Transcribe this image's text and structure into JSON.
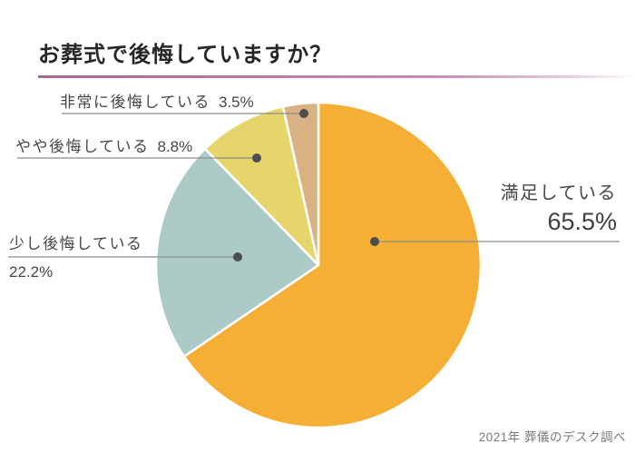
{
  "page": {
    "title": "お葬式で後悔していますか？",
    "source_note": "2021年 葬儀のデスク調べ"
  },
  "chart_data": {
    "type": "pie",
    "title": "お葬式で後悔していますか？",
    "unit": "%",
    "start_angle_deg": 0,
    "direction": "clockwise",
    "legend": "none",
    "categories": [
      "満足している",
      "少し後悔している",
      "やや後悔している",
      "非常に後悔している"
    ],
    "values": [
      65.5,
      22.2,
      8.8,
      3.5
    ],
    "colors": [
      "#F4AF34",
      "#ACCBC7",
      "#E5D56B",
      "#D9B284"
    ],
    "callout_line_color": "#8c8c8c",
    "callout_dot_color": "#4d4d4d",
    "source": "2021年 葬儀のデスク調べ"
  },
  "callouts": {
    "satisfied": {
      "name": "満足している",
      "value": "65.5%"
    },
    "slight_regret": {
      "name": "少し後悔している",
      "value": "22.2%"
    },
    "moderate_regret": {
      "name": "やや後悔している",
      "value": "8.8%"
    },
    "strong_regret": {
      "name": "非常に後悔している",
      "value": "3.5%"
    }
  }
}
